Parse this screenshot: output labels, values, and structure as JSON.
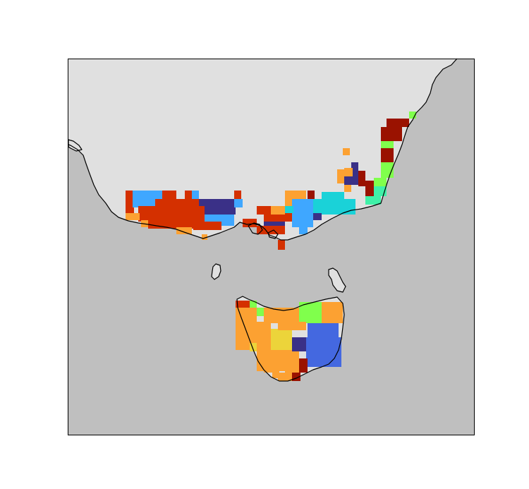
{
  "map": {
    "colors": {
      "ocean": "#bfbfbf",
      "land": "#e0e0e0",
      "coastline": "#000000",
      "frame": "#000000"
    },
    "cluster_palette": {
      "dark-red": "#9a1200",
      "red-orange": "#d43000",
      "orange": "#fca132",
      "yellow": "#ecd43a",
      "light-green": "#80ff4c",
      "turquoise": "#1ad2d8",
      "sky-blue": "#3fa7ff",
      "royal-blue": "#4468e0",
      "indigo": "#3a3087",
      "mint": "#40f0a8"
    }
  }
}
